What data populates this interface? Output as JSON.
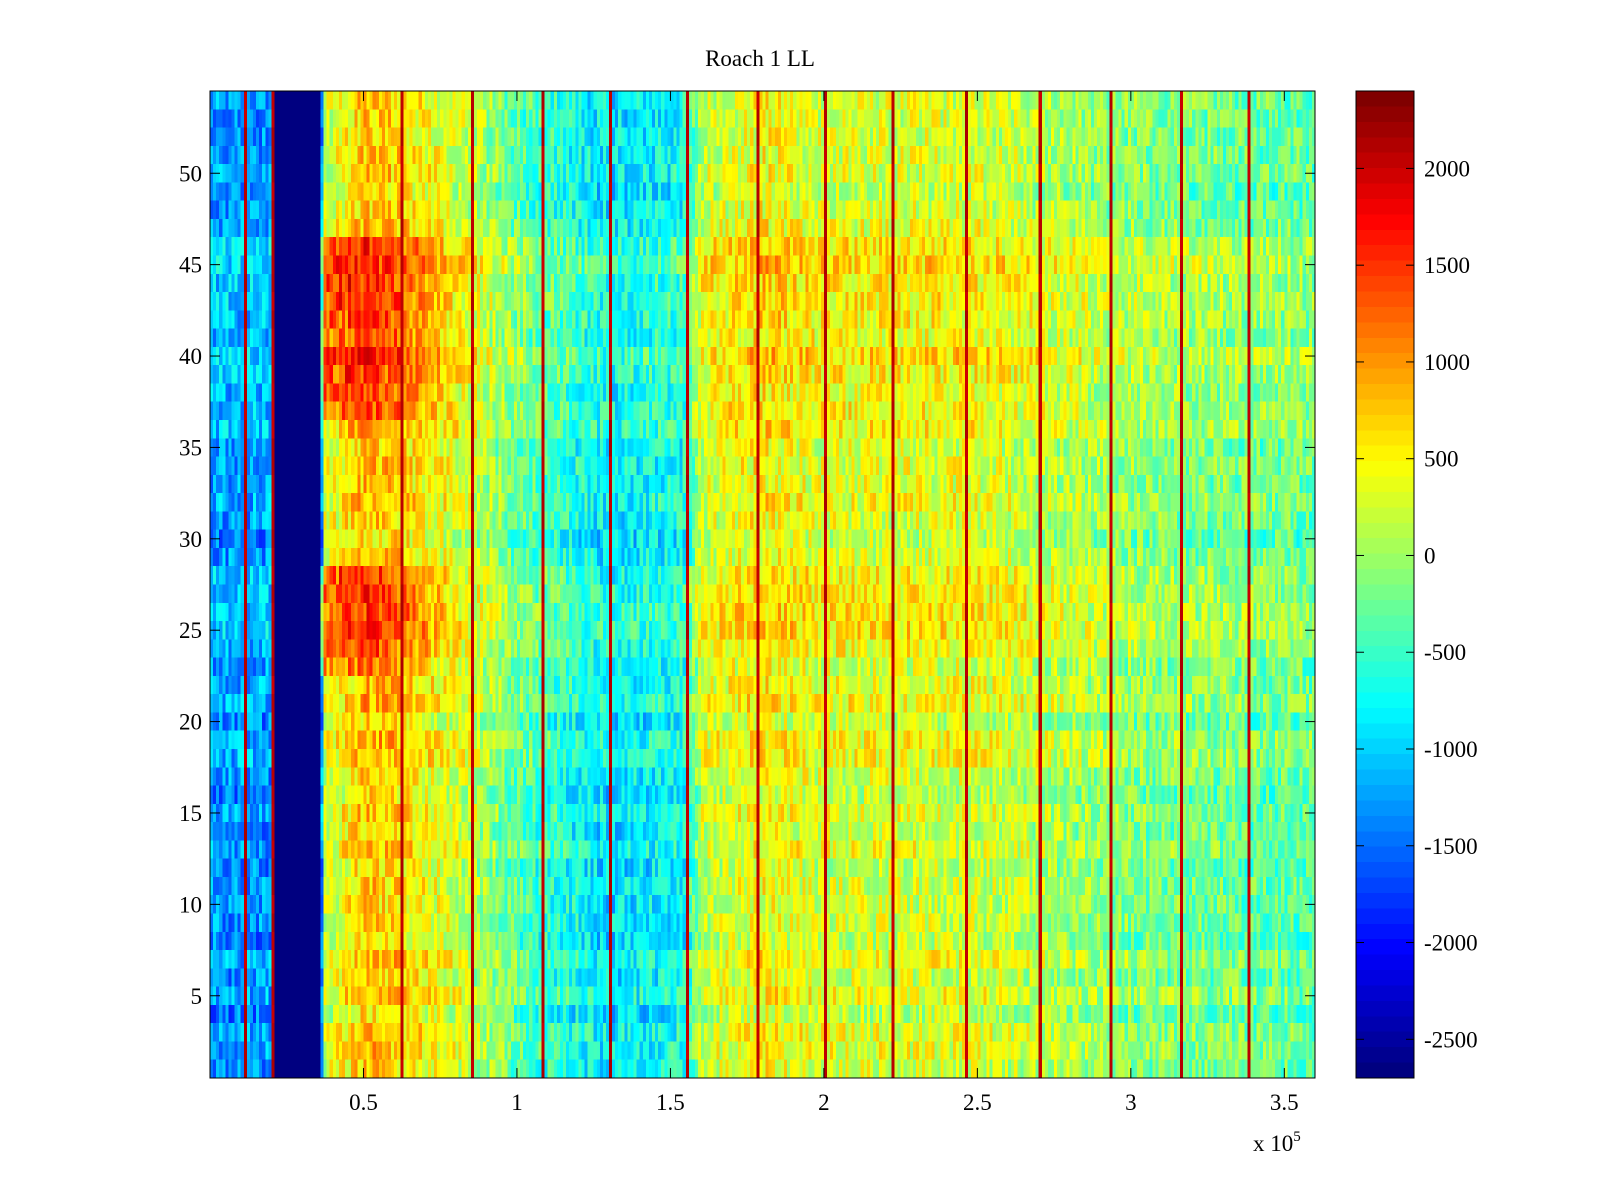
{
  "chart_data": {
    "type": "heatmap",
    "title": "Roach 1 LL",
    "xlabel": "",
    "ylabel": "",
    "x_multiplier_label": "x 10",
    "x_multiplier_exponent": "5",
    "xlim": [
      0,
      3.6
    ],
    "ylim": [
      0.5,
      54.5
    ],
    "xticks": [
      {
        "value": 0.5,
        "label": "0.5"
      },
      {
        "value": 1,
        "label": "1"
      },
      {
        "value": 1.5,
        "label": "1.5"
      },
      {
        "value": 2,
        "label": "2"
      },
      {
        "value": 2.5,
        "label": "2.5"
      },
      {
        "value": 3,
        "label": "3"
      },
      {
        "value": 3.5,
        "label": "3.5"
      }
    ],
    "yticks": [
      {
        "value": 5,
        "label": "5"
      },
      {
        "value": 10,
        "label": "10"
      },
      {
        "value": 15,
        "label": "15"
      },
      {
        "value": 20,
        "label": "20"
      },
      {
        "value": 25,
        "label": "25"
      },
      {
        "value": 30,
        "label": "30"
      },
      {
        "value": 35,
        "label": "35"
      },
      {
        "value": 40,
        "label": "40"
      },
      {
        "value": 45,
        "label": "45"
      },
      {
        "value": 50,
        "label": "50"
      }
    ],
    "colorbar": {
      "colormap": "jet",
      "clim": [
        -2700,
        2400
      ],
      "ticks": [
        {
          "value": 2000,
          "label": "2000"
        },
        {
          "value": 1500,
          "label": "1500"
        },
        {
          "value": 1000,
          "label": "1000"
        },
        {
          "value": 500,
          "label": "500"
        },
        {
          "value": 0,
          "label": "0"
        },
        {
          "value": -500,
          "label": "-500"
        },
        {
          "value": -1000,
          "label": "-1000"
        },
        {
          "value": -1500,
          "label": "-1500"
        },
        {
          "value": -2000,
          "label": "-2000"
        },
        {
          "value": -2500,
          "label": "-2500"
        }
      ]
    },
    "n_rows": 54,
    "n_cols": 360,
    "x_step": 0.01,
    "column_profile": [
      {
        "x": 0.0,
        "v": -1300
      },
      {
        "x": 0.2,
        "v": -1300
      },
      {
        "x": 0.21,
        "v": -2700
      },
      {
        "x": 0.36,
        "v": -2700
      },
      {
        "x": 0.37,
        "v": 200
      },
      {
        "x": 0.5,
        "v": 800
      },
      {
        "x": 0.62,
        "v": 700
      },
      {
        "x": 0.85,
        "v": 200
      },
      {
        "x": 1.0,
        "v": -300
      },
      {
        "x": 1.3,
        "v": -900
      },
      {
        "x": 1.55,
        "v": -700
      },
      {
        "x": 1.6,
        "v": 200
      },
      {
        "x": 1.8,
        "v": 500
      },
      {
        "x": 2.0,
        "v": 300
      },
      {
        "x": 2.5,
        "v": 300
      },
      {
        "x": 2.75,
        "v": 100
      },
      {
        "x": 3.0,
        "v": -100
      },
      {
        "x": 3.3,
        "v": -200
      },
      {
        "x": 3.6,
        "v": -300
      }
    ],
    "row_profile": [
      {
        "y": 1,
        "v": -100
      },
      {
        "y": 10,
        "v": 0
      },
      {
        "y": 20,
        "v": 0
      },
      {
        "y": 24,
        "v": 300
      },
      {
        "y": 27,
        "v": 400
      },
      {
        "y": 30,
        "v": 0
      },
      {
        "y": 35,
        "v": 100
      },
      {
        "y": 40,
        "v": 400
      },
      {
        "y": 44,
        "v": 450
      },
      {
        "y": 46,
        "v": 300
      },
      {
        "y": 48,
        "v": 0
      },
      {
        "y": 54,
        "v": -100
      }
    ],
    "hot_region_boost": {
      "x_from": 0.36,
      "x_to": 0.8,
      "y_bands": [
        [
          23,
          28
        ],
        [
          37,
          46
        ]
      ],
      "v": 900
    },
    "noise_amplitude": 450,
    "vertical_lines": {
      "x": [
        0.11,
        0.2,
        0.62,
        0.85,
        1.08,
        1.3,
        1.55,
        1.78,
        2.0,
        2.22,
        2.46,
        2.7,
        2.93,
        3.16,
        3.38
      ],
      "value": 2100
    }
  }
}
